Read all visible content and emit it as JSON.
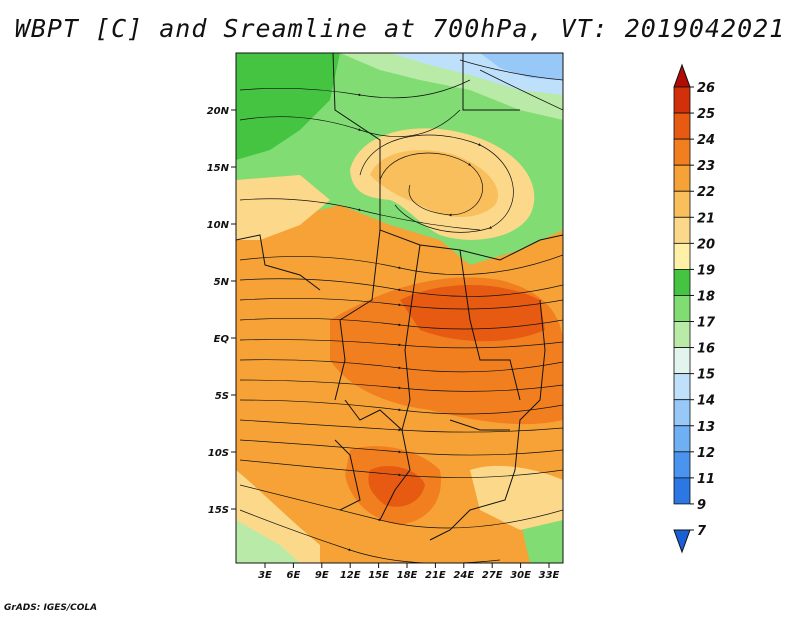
{
  "title": "WBPT [C] and Sreamline at 700hPa, VT: 2019042021",
  "credit": "GrADS: IGES/COLA",
  "map": {
    "lat_labels": [
      "20N",
      "15N",
      "10N",
      "5N",
      "EQ",
      "5S",
      "10S",
      "15S"
    ],
    "lon_labels": [
      "3E",
      "6E",
      "9E",
      "12E",
      "15E",
      "18E",
      "21E",
      "24E",
      "27E",
      "30E",
      "33E"
    ]
  },
  "colorbar": {
    "levels": [
      "7",
      "9",
      "11",
      "12",
      "13",
      "14",
      "15",
      "16",
      "17",
      "18",
      "19",
      "20",
      "21",
      "22",
      "23",
      "24",
      "25",
      "26"
    ],
    "colors": [
      "#1a5fd6",
      "#2b78e4",
      "#4a93ee",
      "#6fb0f5",
      "#97c8f8",
      "#bfe0fb",
      "#e2f4ee",
      "#b9eaa7",
      "#82dc74",
      "#45c442",
      "#fff0a8",
      "#fcd98a",
      "#f9bf5c",
      "#f6a236",
      "#f27f1f",
      "#e65a12",
      "#d2300a",
      "#b00c05"
    ]
  }
}
